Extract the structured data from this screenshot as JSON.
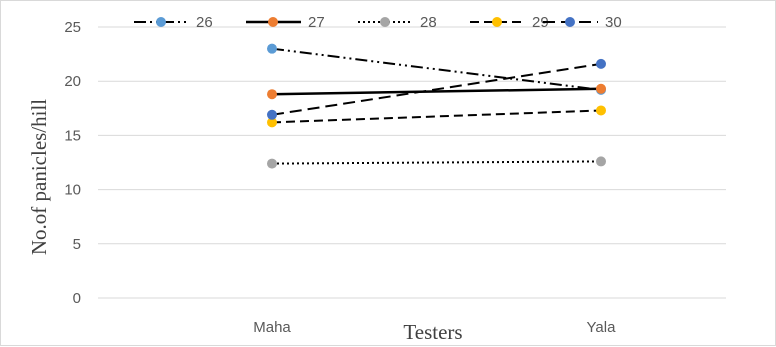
{
  "chart_data": {
    "type": "line",
    "title": "",
    "xlabel": "Testers",
    "ylabel": "No.of panicles/hill",
    "categories": [
      "Maha",
      "Yala"
    ],
    "ylim": [
      0,
      25
    ],
    "yticks": [
      0,
      5,
      10,
      15,
      20,
      25
    ],
    "grid": "horizontal",
    "legend_position": "top",
    "series": [
      {
        "name": "26",
        "values": [
          23.0,
          19.2
        ],
        "color": "#5b9bd5",
        "dash": "dash-dot-dot"
      },
      {
        "name": "27",
        "values": [
          18.8,
          19.3
        ],
        "color": "#ed7d31",
        "dash": "solid"
      },
      {
        "name": "28",
        "values": [
          12.4,
          12.6
        ],
        "color": "#a5a5a5",
        "dash": "dotted"
      },
      {
        "name": "29",
        "values": [
          16.2,
          17.3
        ],
        "color": "#ffc000",
        "dash": "dashed"
      },
      {
        "name": "30",
        "values": [
          16.9,
          21.6
        ],
        "color": "#4472c4",
        "dash": "long-dash"
      }
    ]
  }
}
